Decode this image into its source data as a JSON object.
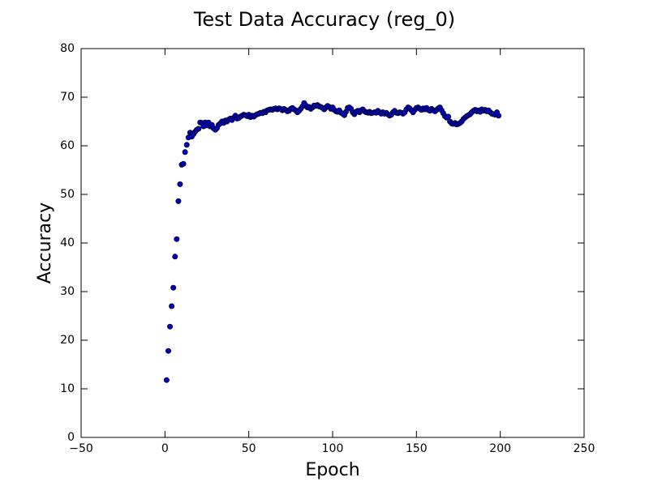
{
  "chart_data": {
    "type": "scatter",
    "title": "Test Data Accuracy (reg_0)",
    "x_label": "Epoch",
    "y_label": "Accuracy",
    "color": "#0000bf",
    "xlim": [
      -50,
      250
    ],
    "ylim": [
      0,
      80
    ],
    "xticks": [
      {
        "value": -50,
        "label": "−50"
      },
      0,
      50,
      100,
      150,
      200,
      250
    ],
    "yticks": [
      0,
      10,
      20,
      30,
      40,
      50,
      60,
      70,
      80
    ],
    "x": [
      1,
      2,
      3,
      4,
      5,
      6,
      7,
      8,
      9,
      10,
      11,
      12,
      13,
      14,
      15,
      16,
      17,
      18,
      19,
      20,
      21,
      22,
      23,
      24,
      25,
      26,
      27,
      28,
      29,
      30,
      31,
      32,
      33,
      34,
      35,
      36,
      37,
      38,
      39,
      40,
      41,
      42,
      43,
      44,
      45,
      46,
      47,
      48,
      49,
      50,
      51,
      52,
      53,
      54,
      55,
      56,
      57,
      58,
      59,
      60,
      61,
      62,
      63,
      64,
      65,
      66,
      67,
      68,
      69,
      70,
      71,
      72,
      73,
      74,
      75,
      76,
      77,
      78,
      79,
      80,
      81,
      82,
      83,
      84,
      85,
      86,
      87,
      88,
      89,
      90,
      91,
      92,
      93,
      94,
      95,
      96,
      97,
      98,
      99,
      100,
      101,
      102,
      103,
      104,
      105,
      106,
      107,
      108,
      109,
      110,
      111,
      112,
      113,
      114,
      115,
      116,
      117,
      118,
      119,
      120,
      121,
      122,
      123,
      124,
      125,
      126,
      127,
      128,
      129,
      130,
      131,
      132,
      133,
      134,
      135,
      136,
      137,
      138,
      139,
      140,
      141,
      142,
      143,
      144,
      145,
      146,
      147,
      148,
      149,
      150,
      151,
      152,
      153,
      154,
      155,
      156,
      157,
      158,
      159,
      160,
      161,
      162,
      163,
      164,
      165,
      166,
      167,
      168,
      169,
      170,
      171,
      172,
      173,
      174,
      175,
      176,
      177,
      178,
      179,
      180,
      181,
      182,
      183,
      184,
      185,
      186,
      187,
      188,
      189,
      190,
      191,
      192,
      193,
      194,
      195,
      196,
      197,
      198,
      199
    ],
    "values": [
      11.8,
      17.8,
      22.8,
      27.0,
      30.8,
      37.2,
      40.8,
      48.6,
      52.1,
      56.1,
      56.3,
      58.7,
      60.2,
      61.7,
      62.7,
      61.9,
      62.4,
      62.9,
      63.3,
      63.5,
      64.8,
      64.7,
      64.0,
      64.8,
      64.2,
      64.8,
      64.0,
      64.3,
      63.6,
      63.3,
      63.6,
      64.3,
      64.6,
      65.0,
      64.7,
      65.2,
      65.0,
      65.4,
      65.6,
      65.3,
      65.8,
      66.2,
      65.6,
      65.7,
      66.0,
      66.2,
      66.4,
      66.3,
      66.1,
      66.4,
      65.9,
      66.2,
      66.0,
      66.3,
      66.5,
      66.6,
      66.8,
      66.7,
      67.0,
      66.9,
      67.3,
      67.4,
      67.5,
      67.4,
      67.6,
      67.7,
      67.5,
      67.7,
      67.6,
      67.3,
      67.6,
      67.4,
      67.1,
      67.2,
      67.6,
      67.8,
      67.5,
      67.3,
      66.9,
      67.2,
      67.6,
      68.1,
      68.8,
      68.3,
      67.9,
      68.0,
      67.6,
      67.9,
      68.3,
      68.2,
      68.4,
      68.1,
      68.0,
      67.8,
      67.5,
      67.9,
      68.2,
      68.0,
      67.6,
      67.9,
      67.4,
      67.1,
      67.0,
      67.3,
      66.8,
      66.6,
      66.3,
      67.0,
      67.8,
      67.9,
      67.6,
      66.9,
      66.5,
      67.0,
      67.2,
      66.9,
      67.3,
      67.5,
      67.1,
      66.9,
      66.8,
      67.0,
      66.7,
      66.8,
      66.9,
      66.8,
      67.2,
      66.9,
      66.6,
      66.9,
      66.6,
      66.8,
      66.5,
      66.2,
      66.4,
      66.9,
      67.2,
      66.8,
      66.7,
      66.9,
      66.8,
      66.6,
      66.9,
      67.5,
      67.9,
      67.7,
      67.3,
      66.9,
      67.4,
      67.8,
      67.9,
      67.6,
      67.4,
      67.7,
      67.5,
      67.8,
      67.4,
      67.2,
      67.6,
      67.3,
      67.1,
      67.4,
      67.7,
      67.9,
      67.3,
      66.7,
      66.1,
      65.8,
      66.0,
      65.0,
      64.6,
      64.5,
      64.7,
      64.4,
      64.5,
      64.7,
      65.0,
      65.5,
      65.8,
      66.1,
      66.3,
      66.5,
      66.9,
      67.2,
      67.4,
      67.1,
      67.3,
      67.0,
      67.5,
      67.2,
      67.4,
      67.1,
      67.3,
      66.9,
      66.6,
      66.5,
      66.4,
      66.9,
      66.2
    ]
  }
}
